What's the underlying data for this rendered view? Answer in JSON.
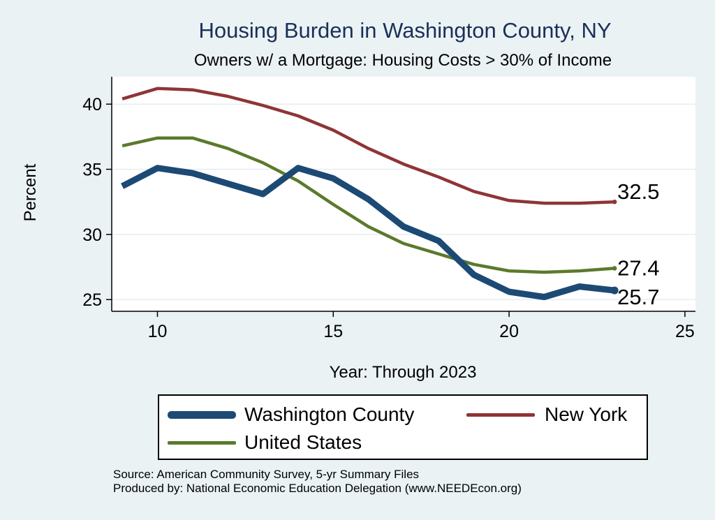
{
  "chart_data": {
    "type": "line",
    "title": "Housing Burden in Washington County, NY",
    "subtitle": "Owners w/ a Mortgage: Housing Costs > 30% of Income",
    "xlabel": "Year: Through 2023",
    "ylabel": "Percent",
    "xlim": [
      8.7,
      25.3
    ],
    "ylim": [
      24.1,
      42.1
    ],
    "xticks": [
      10,
      15,
      20,
      25
    ],
    "yticks": [
      25,
      30,
      35,
      40
    ],
    "grid": true,
    "legend_position": "bottom",
    "series": [
      {
        "name": "Washington County",
        "color": "#1c4a74",
        "x": [
          9,
          10,
          11,
          12,
          13,
          14,
          15,
          16,
          17,
          18,
          19,
          20,
          21,
          22,
          23
        ],
        "values": [
          33.7,
          35.1,
          34.7,
          33.9,
          33.1,
          35.1,
          34.3,
          32.7,
          30.6,
          29.5,
          26.9,
          25.6,
          25.2,
          26.0,
          25.7
        ],
        "end_label": "25.7"
      },
      {
        "name": "New York",
        "color": "#8e3537",
        "x": [
          9,
          10,
          11,
          12,
          13,
          14,
          15,
          16,
          17,
          18,
          19,
          20,
          21,
          22,
          23
        ],
        "values": [
          40.4,
          41.2,
          41.1,
          40.6,
          39.9,
          39.1,
          38.0,
          36.6,
          35.4,
          34.4,
          33.3,
          32.6,
          32.4,
          32.4,
          32.5
        ],
        "end_label": "32.5"
      },
      {
        "name": "United States",
        "color": "#5b7a2c",
        "x": [
          9,
          10,
          11,
          12,
          13,
          14,
          15,
          16,
          17,
          18,
          19,
          20,
          21,
          22,
          23
        ],
        "values": [
          36.8,
          37.4,
          37.4,
          36.6,
          35.5,
          34.1,
          32.3,
          30.6,
          29.3,
          28.5,
          27.7,
          27.2,
          27.1,
          27.2,
          27.4
        ],
        "end_label": "27.4"
      }
    ]
  },
  "legend": {
    "washington": "Washington County",
    "newyork": "New York",
    "us": "United States"
  },
  "source": {
    "line1": "Source: American Community Survey, 5-yr Summary Files",
    "line2": "Produced by: National Economic Education Delegation (www.NEEDEcon.org)"
  }
}
